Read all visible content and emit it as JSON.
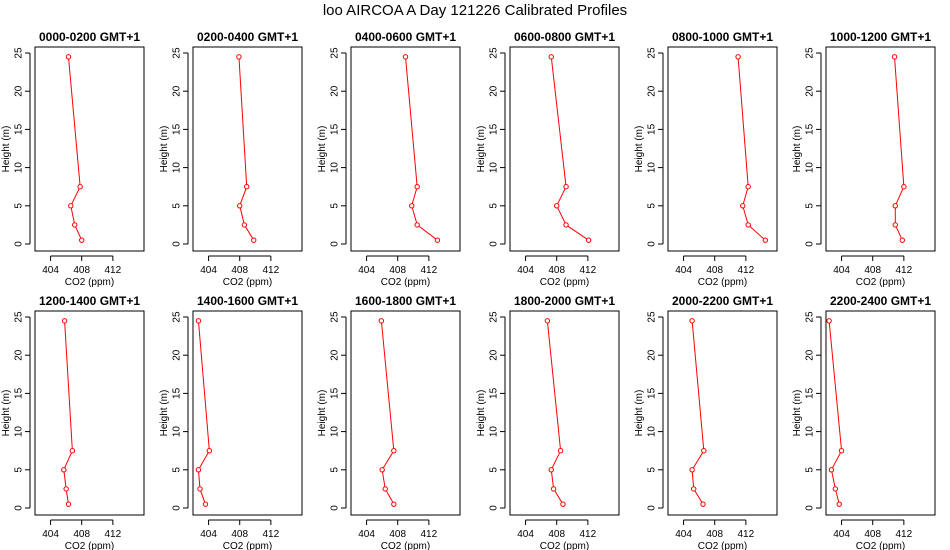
{
  "title": "loo AIRCOA A  Day 121226  Calibrated Profiles",
  "chart_data": [
    {
      "type": "line",
      "title": "0000-0200 GMT+1",
      "xlabel": "CO2 (ppm)",
      "ylabel": "Height (m)",
      "xlim": [
        402,
        416
      ],
      "ylim": [
        0,
        25
      ],
      "xticks": [
        404,
        408,
        412
      ],
      "yticks": [
        0,
        5,
        10,
        15,
        20,
        25
      ],
      "series": [
        {
          "color": "#ff0000",
          "points": [
            [
              406.3,
              24.5
            ],
            [
              407.8,
              7.5
            ],
            [
              406.6,
              5.0
            ],
            [
              407.1,
              2.5
            ],
            [
              408.0,
              0.5
            ]
          ]
        }
      ]
    },
    {
      "type": "line",
      "title": "0200-0400 GMT+1",
      "xlabel": "CO2 (ppm)",
      "ylabel": "Height (m)",
      "xlim": [
        402,
        416
      ],
      "ylim": [
        0,
        25
      ],
      "xticks": [
        404,
        408,
        412
      ],
      "yticks": [
        0,
        5,
        10,
        15,
        20,
        25
      ],
      "series": [
        {
          "color": "#ff0000",
          "points": [
            [
              407.9,
              24.5
            ],
            [
              408.9,
              7.5
            ],
            [
              408.0,
              5.0
            ],
            [
              408.6,
              2.5
            ],
            [
              409.8,
              0.5
            ]
          ]
        }
      ]
    },
    {
      "type": "line",
      "title": "0400-0600 GMT+1",
      "xlabel": "CO2 (ppm)",
      "ylabel": "Height (m)",
      "xlim": [
        402,
        416
      ],
      "ylim": [
        0,
        25
      ],
      "xticks": [
        404,
        408,
        412
      ],
      "yticks": [
        0,
        5,
        10,
        15,
        20,
        25
      ],
      "series": [
        {
          "color": "#ff0000",
          "points": [
            [
              409.0,
              24.5
            ],
            [
              410.5,
              7.5
            ],
            [
              409.8,
              5.0
            ],
            [
              410.5,
              2.5
            ],
            [
              413.1,
              0.5
            ]
          ]
        }
      ]
    },
    {
      "type": "line",
      "title": "0600-0800 GMT+1",
      "xlabel": "CO2 (ppm)",
      "ylabel": "Height (m)",
      "xlim": [
        402,
        416
      ],
      "ylim": [
        0,
        25
      ],
      "xticks": [
        404,
        408,
        412
      ],
      "yticks": [
        0,
        5,
        10,
        15,
        20,
        25
      ],
      "series": [
        {
          "color": "#ff0000",
          "points": [
            [
              407.3,
              24.5
            ],
            [
              409.2,
              7.5
            ],
            [
              408.0,
              5.0
            ],
            [
              409.2,
              2.5
            ],
            [
              412.1,
              0.5
            ]
          ]
        }
      ]
    },
    {
      "type": "line",
      "title": "0800-1000 GMT+1",
      "xlabel": "CO2 (ppm)",
      "ylabel": "Height (m)",
      "xlim": [
        402,
        416
      ],
      "ylim": [
        0,
        25
      ],
      "xticks": [
        404,
        408,
        412
      ],
      "yticks": [
        0,
        5,
        10,
        15,
        20,
        25
      ],
      "series": [
        {
          "color": "#ff0000",
          "points": [
            [
              411.0,
              24.5
            ],
            [
              412.3,
              7.5
            ],
            [
              411.6,
              5.0
            ],
            [
              412.3,
              2.5
            ],
            [
              414.5,
              0.5
            ]
          ]
        }
      ]
    },
    {
      "type": "line",
      "title": "1000-1200 GMT+1",
      "xlabel": "CO2 (ppm)",
      "ylabel": "Height (m)",
      "xlim": [
        402,
        416
      ],
      "ylim": [
        0,
        25
      ],
      "xticks": [
        404,
        408,
        412
      ],
      "yticks": [
        0,
        5,
        10,
        15,
        20,
        25
      ],
      "series": [
        {
          "color": "#ff0000",
          "points": [
            [
              410.8,
              24.5
            ],
            [
              412.0,
              7.5
            ],
            [
              410.9,
              5.0
            ],
            [
              410.9,
              2.5
            ],
            [
              411.8,
              0.5
            ]
          ]
        }
      ]
    },
    {
      "type": "line",
      "title": "1200-1400 GMT+1",
      "xlabel": "CO2 (ppm)",
      "ylabel": "Height (m)",
      "xlim": [
        402,
        416
      ],
      "ylim": [
        0,
        25
      ],
      "xticks": [
        404,
        408,
        412
      ],
      "yticks": [
        0,
        5,
        10,
        15,
        20,
        25
      ],
      "series": [
        {
          "color": "#ff0000",
          "points": [
            [
              405.8,
              24.5
            ],
            [
              406.8,
              7.5
            ],
            [
              405.7,
              5.0
            ],
            [
              406.0,
              2.5
            ],
            [
              406.3,
              0.5
            ]
          ]
        }
      ]
    },
    {
      "type": "line",
      "title": "1400-1600 GMT+1",
      "xlabel": "CO2 (ppm)",
      "ylabel": "Height (m)",
      "xlim": [
        402,
        416
      ],
      "ylim": [
        0,
        25
      ],
      "xticks": [
        404,
        408,
        412
      ],
      "yticks": [
        0,
        5,
        10,
        15,
        20,
        25
      ],
      "series": [
        {
          "color": "#ff0000",
          "points": [
            [
              402.7,
              24.5
            ],
            [
              404.1,
              7.5
            ],
            [
              402.7,
              5.0
            ],
            [
              402.9,
              2.5
            ],
            [
              403.6,
              0.5
            ]
          ]
        }
      ]
    },
    {
      "type": "line",
      "title": "1600-1800 GMT+1",
      "xlabel": "CO2 (ppm)",
      "ylabel": "Height (m)",
      "xlim": [
        402,
        416
      ],
      "ylim": [
        0,
        25
      ],
      "xticks": [
        404,
        408,
        412
      ],
      "yticks": [
        0,
        5,
        10,
        15,
        20,
        25
      ],
      "series": [
        {
          "color": "#ff0000",
          "points": [
            [
              405.9,
              24.5
            ],
            [
              407.5,
              7.5
            ],
            [
              406.0,
              5.0
            ],
            [
              406.4,
              2.5
            ],
            [
              407.5,
              0.5
            ]
          ]
        }
      ]
    },
    {
      "type": "line",
      "title": "1800-2000 GMT+1",
      "xlabel": "CO2 (ppm)",
      "ylabel": "Height (m)",
      "xlim": [
        402,
        416
      ],
      "ylim": [
        0,
        25
      ],
      "xticks": [
        404,
        408,
        412
      ],
      "yticks": [
        0,
        5,
        10,
        15,
        20,
        25
      ],
      "series": [
        {
          "color": "#ff0000",
          "points": [
            [
              406.8,
              24.5
            ],
            [
              408.5,
              7.5
            ],
            [
              407.3,
              5.0
            ],
            [
              407.6,
              2.5
            ],
            [
              408.8,
              0.5
            ]
          ]
        }
      ]
    },
    {
      "type": "line",
      "title": "2000-2200 GMT+1",
      "xlabel": "CO2 (ppm)",
      "ylabel": "Height (m)",
      "xlim": [
        402,
        416
      ],
      "ylim": [
        0,
        25
      ],
      "xticks": [
        404,
        408,
        412
      ],
      "yticks": [
        0,
        5,
        10,
        15,
        20,
        25
      ],
      "series": [
        {
          "color": "#ff0000",
          "points": [
            [
              405.1,
              24.5
            ],
            [
              406.6,
              7.5
            ],
            [
              405.1,
              5.0
            ],
            [
              405.3,
              2.5
            ],
            [
              406.5,
              0.5
            ]
          ]
        }
      ]
    },
    {
      "type": "line",
      "title": "2200-2400 GMT+1",
      "xlabel": "CO2 (ppm)",
      "ylabel": "Height (m)",
      "xlim": [
        402,
        416
      ],
      "ylim": [
        0,
        25
      ],
      "xticks": [
        404,
        408,
        412
      ],
      "yticks": [
        0,
        5,
        10,
        15,
        20,
        25
      ],
      "series": [
        {
          "color": "#ff0000",
          "points": [
            [
              402.4,
              24.5
            ],
            [
              404.0,
              7.5
            ],
            [
              402.7,
              5.0
            ],
            [
              403.2,
              2.5
            ],
            [
              403.7,
              0.5
            ]
          ]
        }
      ]
    }
  ]
}
